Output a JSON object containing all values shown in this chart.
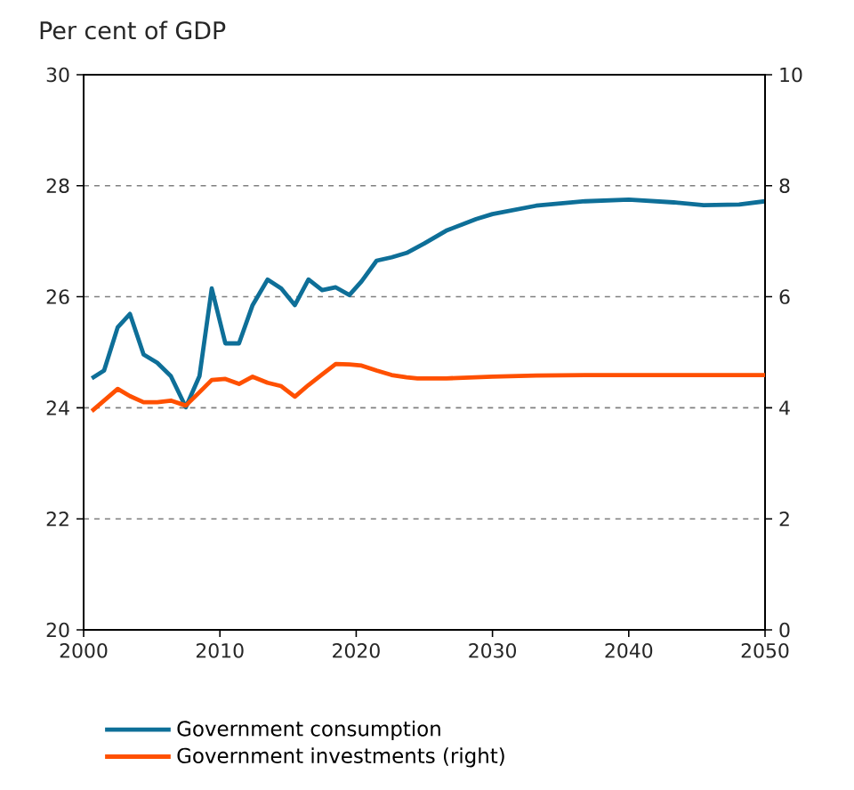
{
  "chart_data": {
    "type": "line",
    "title": "Per cent of GDP",
    "xlim": [
      2000,
      2050
    ],
    "xticks": [
      2000,
      2010,
      2020,
      2030,
      2040,
      2050
    ],
    "ylim": [
      20,
      30
    ],
    "yticks": [
      20,
      22,
      24,
      26,
      28,
      30
    ],
    "y2lim": [
      0,
      10
    ],
    "y2ticks": [
      0,
      2,
      4,
      6,
      8,
      10
    ],
    "grid": "y",
    "legend": "bottom",
    "line_style": "solid",
    "series": [
      {
        "name": "Government consumption",
        "color": "#0e6f98",
        "x": [
          2000.6,
          2001.5,
          2002.5,
          2003.4,
          2004.4,
          2005.4,
          2006.4,
          2007.5,
          2008.5,
          2009.4,
          2010.4,
          2011.4,
          2012.4,
          2013.5,
          2014.5,
          2015.5,
          2016.5,
          2017.5,
          2018.5,
          2019.5,
          2020.4,
          2021.5,
          2022.6,
          2023.7,
          2025.0,
          2026.6,
          2028.8,
          2030.0,
          2033.2,
          2036.8,
          2040.0,
          2043.3,
          2045.5,
          2048.1,
          2050.0
        ],
        "values": [
          24.53,
          24.67,
          25.45,
          25.69,
          24.96,
          24.81,
          24.57,
          24.01,
          24.57,
          26.15,
          25.16,
          25.16,
          25.85,
          26.31,
          26.15,
          25.85,
          26.31,
          26.12,
          26.17,
          26.03,
          26.28,
          26.65,
          26.71,
          26.79,
          26.96,
          27.19,
          27.4,
          27.49,
          27.64,
          27.72,
          27.75,
          27.7,
          27.65,
          27.66,
          27.72
        ]
      },
      {
        "name": "Government investments (right)",
        "color": "#ff5000",
        "axis": "y2",
        "x": [
          2000.6,
          2002.5,
          2003.4,
          2004.4,
          2005.4,
          2006.4,
          2007.5,
          2008.5,
          2009.4,
          2010.4,
          2011.4,
          2012.4,
          2013.5,
          2014.5,
          2015.5,
          2016.5,
          2017.5,
          2018.5,
          2019.5,
          2020.4,
          2021.5,
          2022.6,
          2023.7,
          2024.5,
          2026.6,
          2030.0,
          2033.2,
          2036.8,
          2040.0,
          2050.0
        ],
        "values": [
          3.94,
          4.34,
          4.21,
          4.1,
          4.1,
          4.13,
          4.04,
          4.28,
          4.5,
          4.52,
          4.43,
          4.56,
          4.45,
          4.39,
          4.2,
          4.41,
          4.6,
          4.79,
          4.78,
          4.76,
          4.67,
          4.59,
          4.55,
          4.53,
          4.53,
          4.56,
          4.58,
          4.59,
          4.59,
          4.59
        ]
      }
    ]
  }
}
